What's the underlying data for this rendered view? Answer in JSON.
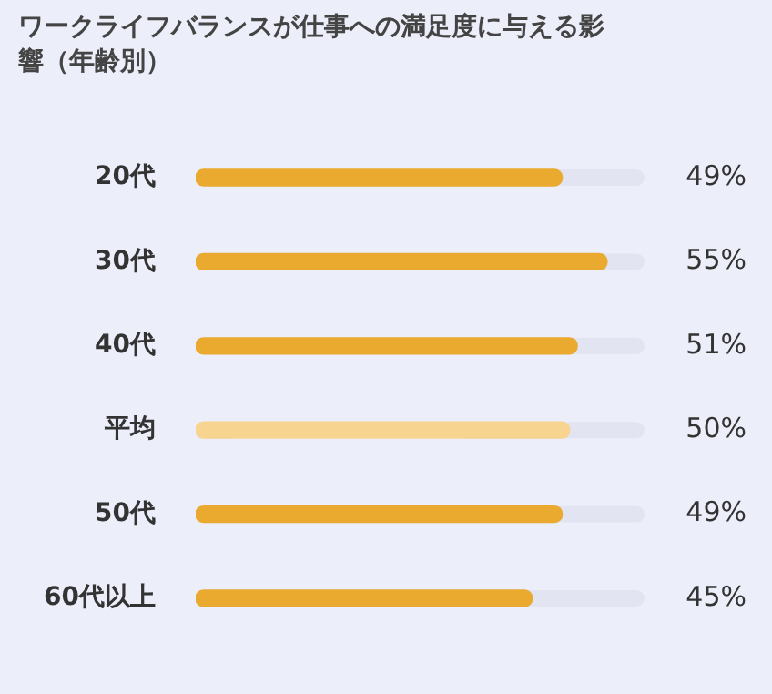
{
  "chart_data": {
    "type": "bar",
    "orientation": "horizontal",
    "title": "ワークライフバランスが仕事への満足度に与える影響（年齢別）",
    "categories": [
      "20代",
      "30代",
      "40代",
      "平均",
      "50代",
      "60代以上"
    ],
    "values": [
      49,
      55,
      51,
      50,
      49,
      45
    ],
    "colors": [
      "#eaa92f",
      "#eaa92f",
      "#eaa92f",
      "#f7d48f",
      "#eaa92f",
      "#eaa92f"
    ],
    "value_labels": [
      "49%",
      "55%",
      "51%",
      "50%",
      "49%",
      "45%"
    ]
  }
}
